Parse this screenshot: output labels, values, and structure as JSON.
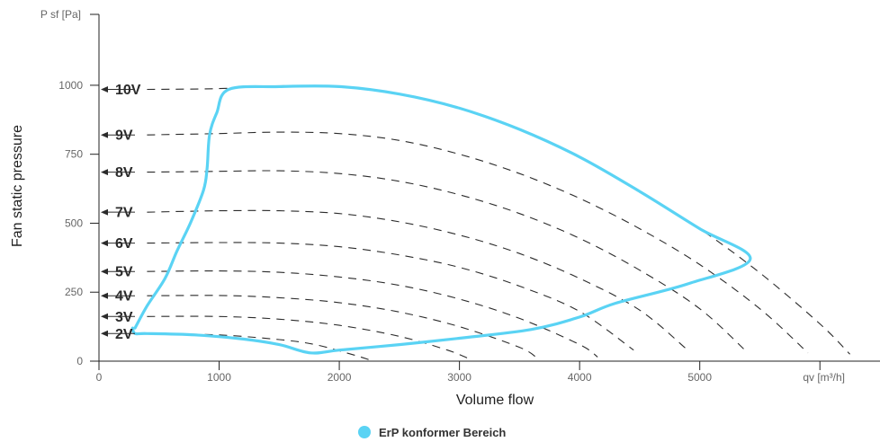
{
  "chart_data": {
    "type": "line",
    "xlabel": "Volume flow",
    "ylabel": "Fan static pressure",
    "x_unit_label": "qv [m³/h]",
    "y_unit_label": "P sf [Pa]",
    "xlim": [
      0,
      6500
    ],
    "ylim": [
      0,
      1270
    ],
    "x_ticks": [
      0,
      1000,
      2000,
      3000,
      4000,
      5000
    ],
    "y_ticks": [
      0,
      250,
      500,
      750,
      1000
    ],
    "grid": false,
    "legend_position": "bottom-center",
    "legend": [
      {
        "name": "ErP konformer Bereich",
        "color": "#5ad3f4"
      }
    ],
    "voltage_curves": [
      {
        "label": "10V",
        "points": [
          [
            400,
            985
          ],
          [
            1000,
            988
          ],
          [
            1500,
            998
          ],
          [
            2000,
            995
          ],
          [
            2500,
            968
          ],
          [
            3000,
            917
          ],
          [
            3500,
            840
          ],
          [
            4000,
            740
          ],
          [
            4500,
            615
          ],
          [
            5000,
            480
          ],
          [
            5500,
            320
          ],
          [
            6000,
            135
          ],
          [
            6250,
            25
          ]
        ]
      },
      {
        "label": "9V",
        "points": [
          [
            400,
            820
          ],
          [
            1000,
            825
          ],
          [
            1500,
            830
          ],
          [
            2000,
            825
          ],
          [
            2500,
            800
          ],
          [
            3000,
            750
          ],
          [
            3500,
            680
          ],
          [
            4000,
            590
          ],
          [
            4500,
            480
          ],
          [
            5000,
            350
          ],
          [
            5500,
            190
          ],
          [
            5900,
            30
          ]
        ]
      },
      {
        "label": "8V",
        "points": [
          [
            400,
            685
          ],
          [
            1000,
            688
          ],
          [
            1500,
            690
          ],
          [
            2000,
            680
          ],
          [
            2500,
            652
          ],
          [
            3000,
            603
          ],
          [
            3500,
            535
          ],
          [
            4000,
            445
          ],
          [
            4500,
            330
          ],
          [
            5000,
            190
          ],
          [
            5400,
            30
          ]
        ]
      },
      {
        "label": "7V",
        "points": [
          [
            400,
            540
          ],
          [
            1000,
            545
          ],
          [
            1500,
            545
          ],
          [
            2000,
            535
          ],
          [
            2500,
            505
          ],
          [
            3000,
            457
          ],
          [
            3500,
            390
          ],
          [
            4000,
            300
          ],
          [
            4500,
            185
          ],
          [
            4900,
            40
          ]
        ]
      },
      {
        "label": "6V",
        "points": [
          [
            400,
            428
          ],
          [
            1000,
            430
          ],
          [
            1500,
            428
          ],
          [
            2000,
            415
          ],
          [
            2500,
            385
          ],
          [
            3000,
            340
          ],
          [
            3500,
            272
          ],
          [
            4000,
            180
          ],
          [
            4450,
            40
          ]
        ]
      },
      {
        "label": "5V",
        "points": [
          [
            400,
            325
          ],
          [
            1000,
            327
          ],
          [
            1500,
            322
          ],
          [
            2000,
            305
          ],
          [
            2500,
            275
          ],
          [
            3000,
            225
          ],
          [
            3500,
            155
          ],
          [
            4000,
            60
          ],
          [
            4150,
            15
          ]
        ]
      },
      {
        "label": "4V",
        "points": [
          [
            400,
            237
          ],
          [
            1000,
            238
          ],
          [
            1500,
            230
          ],
          [
            2000,
            212
          ],
          [
            2500,
            178
          ],
          [
            3000,
            125
          ],
          [
            3500,
            50
          ],
          [
            3650,
            10
          ]
        ]
      },
      {
        "label": "3V",
        "points": [
          [
            400,
            162
          ],
          [
            1000,
            162
          ],
          [
            1500,
            152
          ],
          [
            2000,
            130
          ],
          [
            2500,
            90
          ],
          [
            2900,
            40
          ],
          [
            3100,
            5
          ]
        ]
      },
      {
        "label": "2V",
        "points": [
          [
            400,
            100
          ],
          [
            1000,
            95
          ],
          [
            1500,
            78
          ],
          [
            1800,
            60
          ],
          [
            2100,
            25
          ],
          [
            2250,
            5
          ]
        ]
      }
    ],
    "series": [
      {
        "name": "ErP konformer Bereich",
        "color": "#5ad3f4",
        "points": [
          [
            300,
            120
          ],
          [
            400,
            200
          ],
          [
            550,
            300
          ],
          [
            650,
            400
          ],
          [
            760,
            500
          ],
          [
            870,
            620
          ],
          [
            900,
            700
          ],
          [
            920,
            820
          ],
          [
            980,
            900
          ],
          [
            1080,
            985
          ],
          [
            1500,
            995
          ],
          [
            2000,
            995
          ],
          [
            2500,
            968
          ],
          [
            3000,
            917
          ],
          [
            3500,
            840
          ],
          [
            4000,
            740
          ],
          [
            4500,
            615
          ],
          [
            5000,
            480
          ],
          [
            5420,
            370
          ],
          [
            4900,
            280
          ],
          [
            4300,
            210
          ],
          [
            4000,
            160
          ],
          [
            3600,
            115
          ],
          [
            3000,
            83
          ],
          [
            2500,
            60
          ],
          [
            2000,
            40
          ],
          [
            1760,
            30
          ],
          [
            1500,
            60
          ],
          [
            1200,
            80
          ],
          [
            800,
            95
          ],
          [
            400,
            100
          ],
          [
            300,
            100
          ],
          [
            280,
            120
          ]
        ]
      }
    ]
  }
}
